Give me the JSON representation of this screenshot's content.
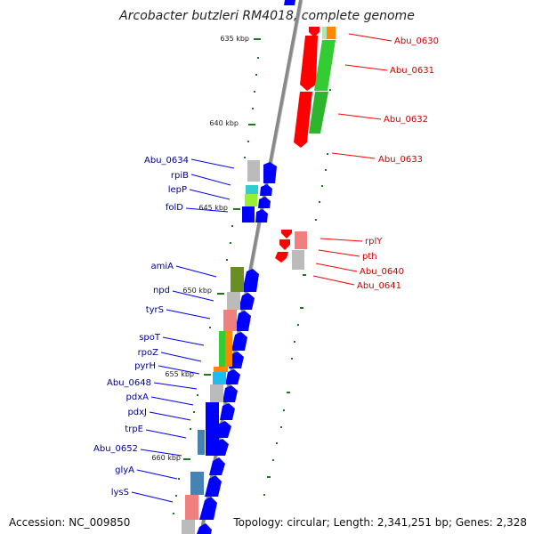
{
  "title": "Arcobacter butzleri RM4018, complete genome",
  "accession": "Accession: NC_009850",
  "topology": "Topology: circular; Length: 2,341,251 bp; Genes: 2,328",
  "colors": {
    "forward": "#0000ff",
    "reverse": "#ff0000",
    "tick": "#1a7a1a",
    "backbone": "#808080"
  },
  "ticks": [
    {
      "kbp": 635,
      "label": "635 kbp"
    },
    {
      "kbp": 640,
      "label": "640 kbp"
    },
    {
      "kbp": 645,
      "label": "645 kbp"
    },
    {
      "kbp": 650,
      "label": "650 kbp"
    },
    {
      "kbp": 655,
      "label": "655 kbp"
    },
    {
      "kbp": 660,
      "label": "660 kbp"
    }
  ],
  "forward_genes": [
    "Abu_0634",
    "rpiB",
    "lepP",
    "folD",
    "amiA",
    "npd",
    "tyrS",
    "spoT",
    "rpoZ",
    "pyrH",
    "Abu_0648",
    "pdxA",
    "pdxJ",
    "trpE",
    "Abu_0652",
    "glyA",
    "lysS"
  ],
  "reverse_genes": [
    "Abu_0630",
    "Abu_0631",
    "Abu_0632",
    "Abu_0633",
    "rplY",
    "pth",
    "Abu_0640",
    "Abu_0641"
  ]
}
